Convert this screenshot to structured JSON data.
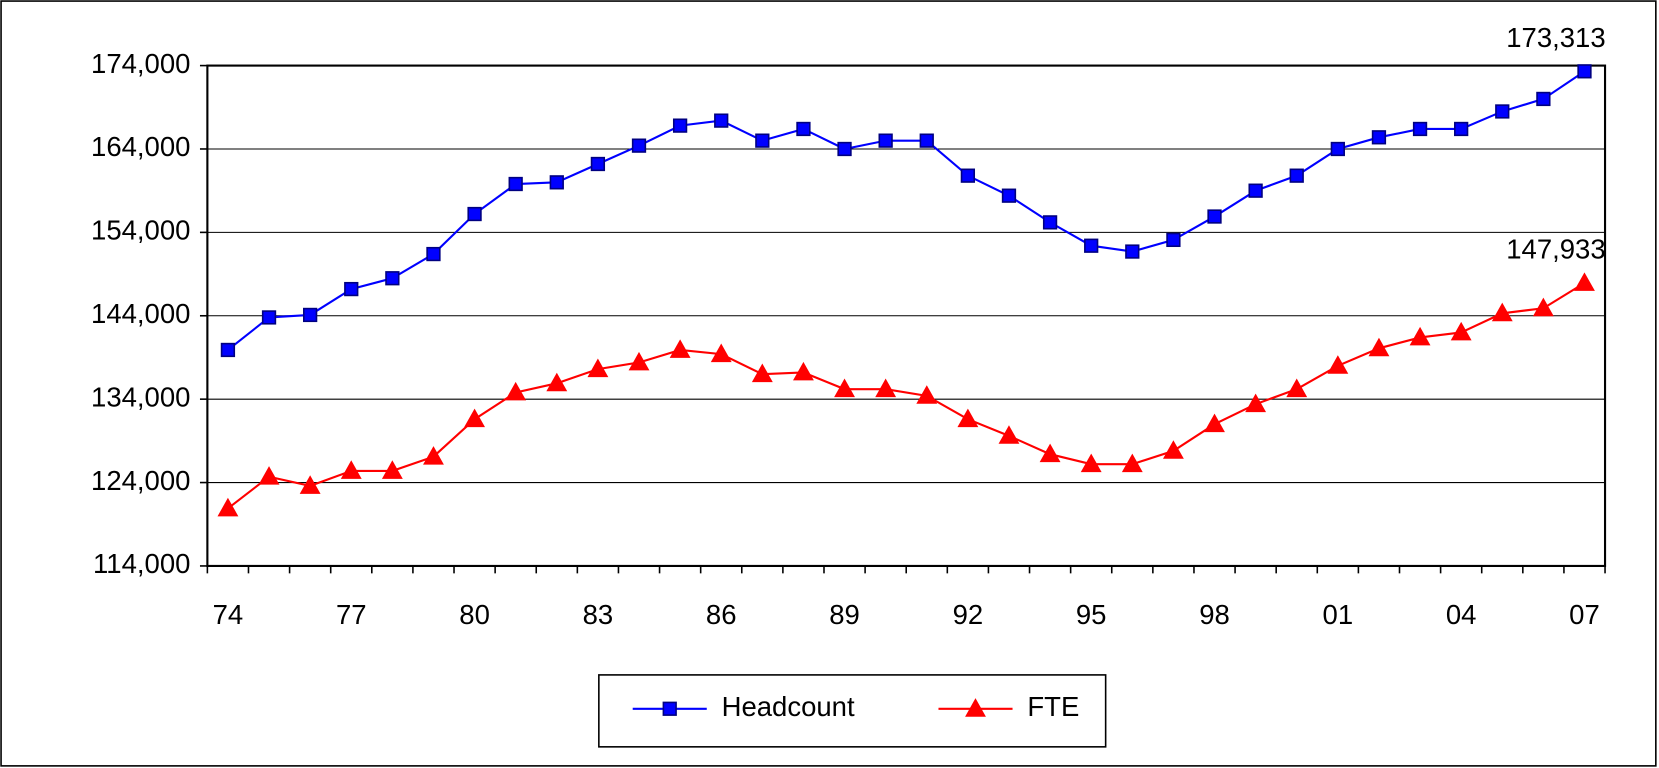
{
  "chart_data": {
    "type": "line",
    "categories": [
      "74",
      null,
      null,
      "77",
      null,
      null,
      "80",
      null,
      null,
      "83",
      null,
      null,
      "86",
      null,
      null,
      "89",
      null,
      null,
      "92",
      null,
      null,
      "95",
      null,
      null,
      "98",
      null,
      null,
      "01",
      null,
      null,
      "04",
      null,
      null,
      "07"
    ],
    "series": [
      {
        "name": "Headcount",
        "color": "#0000ff",
        "marker": "square",
        "values": [
          139900,
          143800,
          144100,
          147200,
          148500,
          151400,
          156200,
          159800,
          160000,
          162200,
          164400,
          166800,
          167400,
          165000,
          166400,
          164000,
          165000,
          165000,
          160800,
          158400,
          155200,
          152400,
          151700,
          153100,
          155900,
          159000,
          160800,
          164000,
          165400,
          166400,
          166400,
          168500,
          170000,
          173313
        ],
        "value_labels": [
          null,
          null,
          null,
          null,
          null,
          null,
          null,
          null,
          null,
          null,
          null,
          null,
          null,
          null,
          null,
          null,
          null,
          null,
          null,
          null,
          null,
          null,
          null,
          null,
          null,
          null,
          null,
          null,
          null,
          null,
          null,
          null,
          null,
          "173,313"
        ]
      },
      {
        "name": "FTE",
        "color": "#ff0000",
        "marker": "triangle",
        "values": [
          120900,
          124700,
          123600,
          125400,
          125400,
          127100,
          131600,
          134800,
          135900,
          137600,
          138400,
          139900,
          139400,
          137000,
          137200,
          135200,
          135200,
          134400,
          131600,
          129600,
          127400,
          126200,
          126200,
          127800,
          131000,
          133400,
          135200,
          138000,
          140100,
          141400,
          142000,
          144300,
          144900,
          147933
        ],
        "value_labels": [
          null,
          null,
          null,
          null,
          null,
          null,
          null,
          null,
          null,
          null,
          null,
          null,
          null,
          null,
          null,
          null,
          null,
          null,
          null,
          null,
          null,
          null,
          null,
          null,
          null,
          null,
          null,
          null,
          null,
          null,
          null,
          null,
          null,
          "147,933"
        ]
      }
    ],
    "ylim": [
      114000,
      174000
    ],
    "yticks": [
      {
        "value": 114000,
        "label": "114,000"
      },
      {
        "value": 124000,
        "label": "124,000"
      },
      {
        "value": 134000,
        "label": "134,000"
      },
      {
        "value": 144000,
        "label": "144,000"
      },
      {
        "value": 154000,
        "label": "154,000"
      },
      {
        "value": 164000,
        "label": "164,000"
      },
      {
        "value": 174000,
        "label": "174,000"
      }
    ],
    "grid": true,
    "legend": "bottom"
  }
}
